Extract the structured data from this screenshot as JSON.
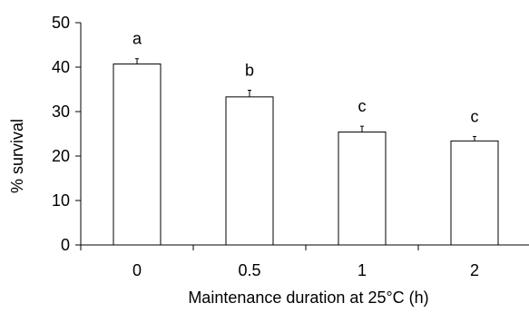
{
  "chart_data": {
    "type": "bar",
    "title": "",
    "xlabel": "Maintenance duration at 25°C (h)",
    "ylabel": "% survival",
    "ylim": [
      0,
      50
    ],
    "yticks": [
      0,
      10,
      20,
      30,
      40,
      50
    ],
    "categories": [
      "0",
      "0.5",
      "1",
      "2"
    ],
    "values": [
      40.7,
      33.3,
      25.4,
      23.4
    ],
    "errors": [
      1.2,
      1.5,
      1.3,
      1.0
    ],
    "significance_labels": [
      "a",
      "b",
      "c",
      "c"
    ],
    "colors": {
      "bar_fill": "#ffffff",
      "bar_stroke": "#000000"
    }
  }
}
